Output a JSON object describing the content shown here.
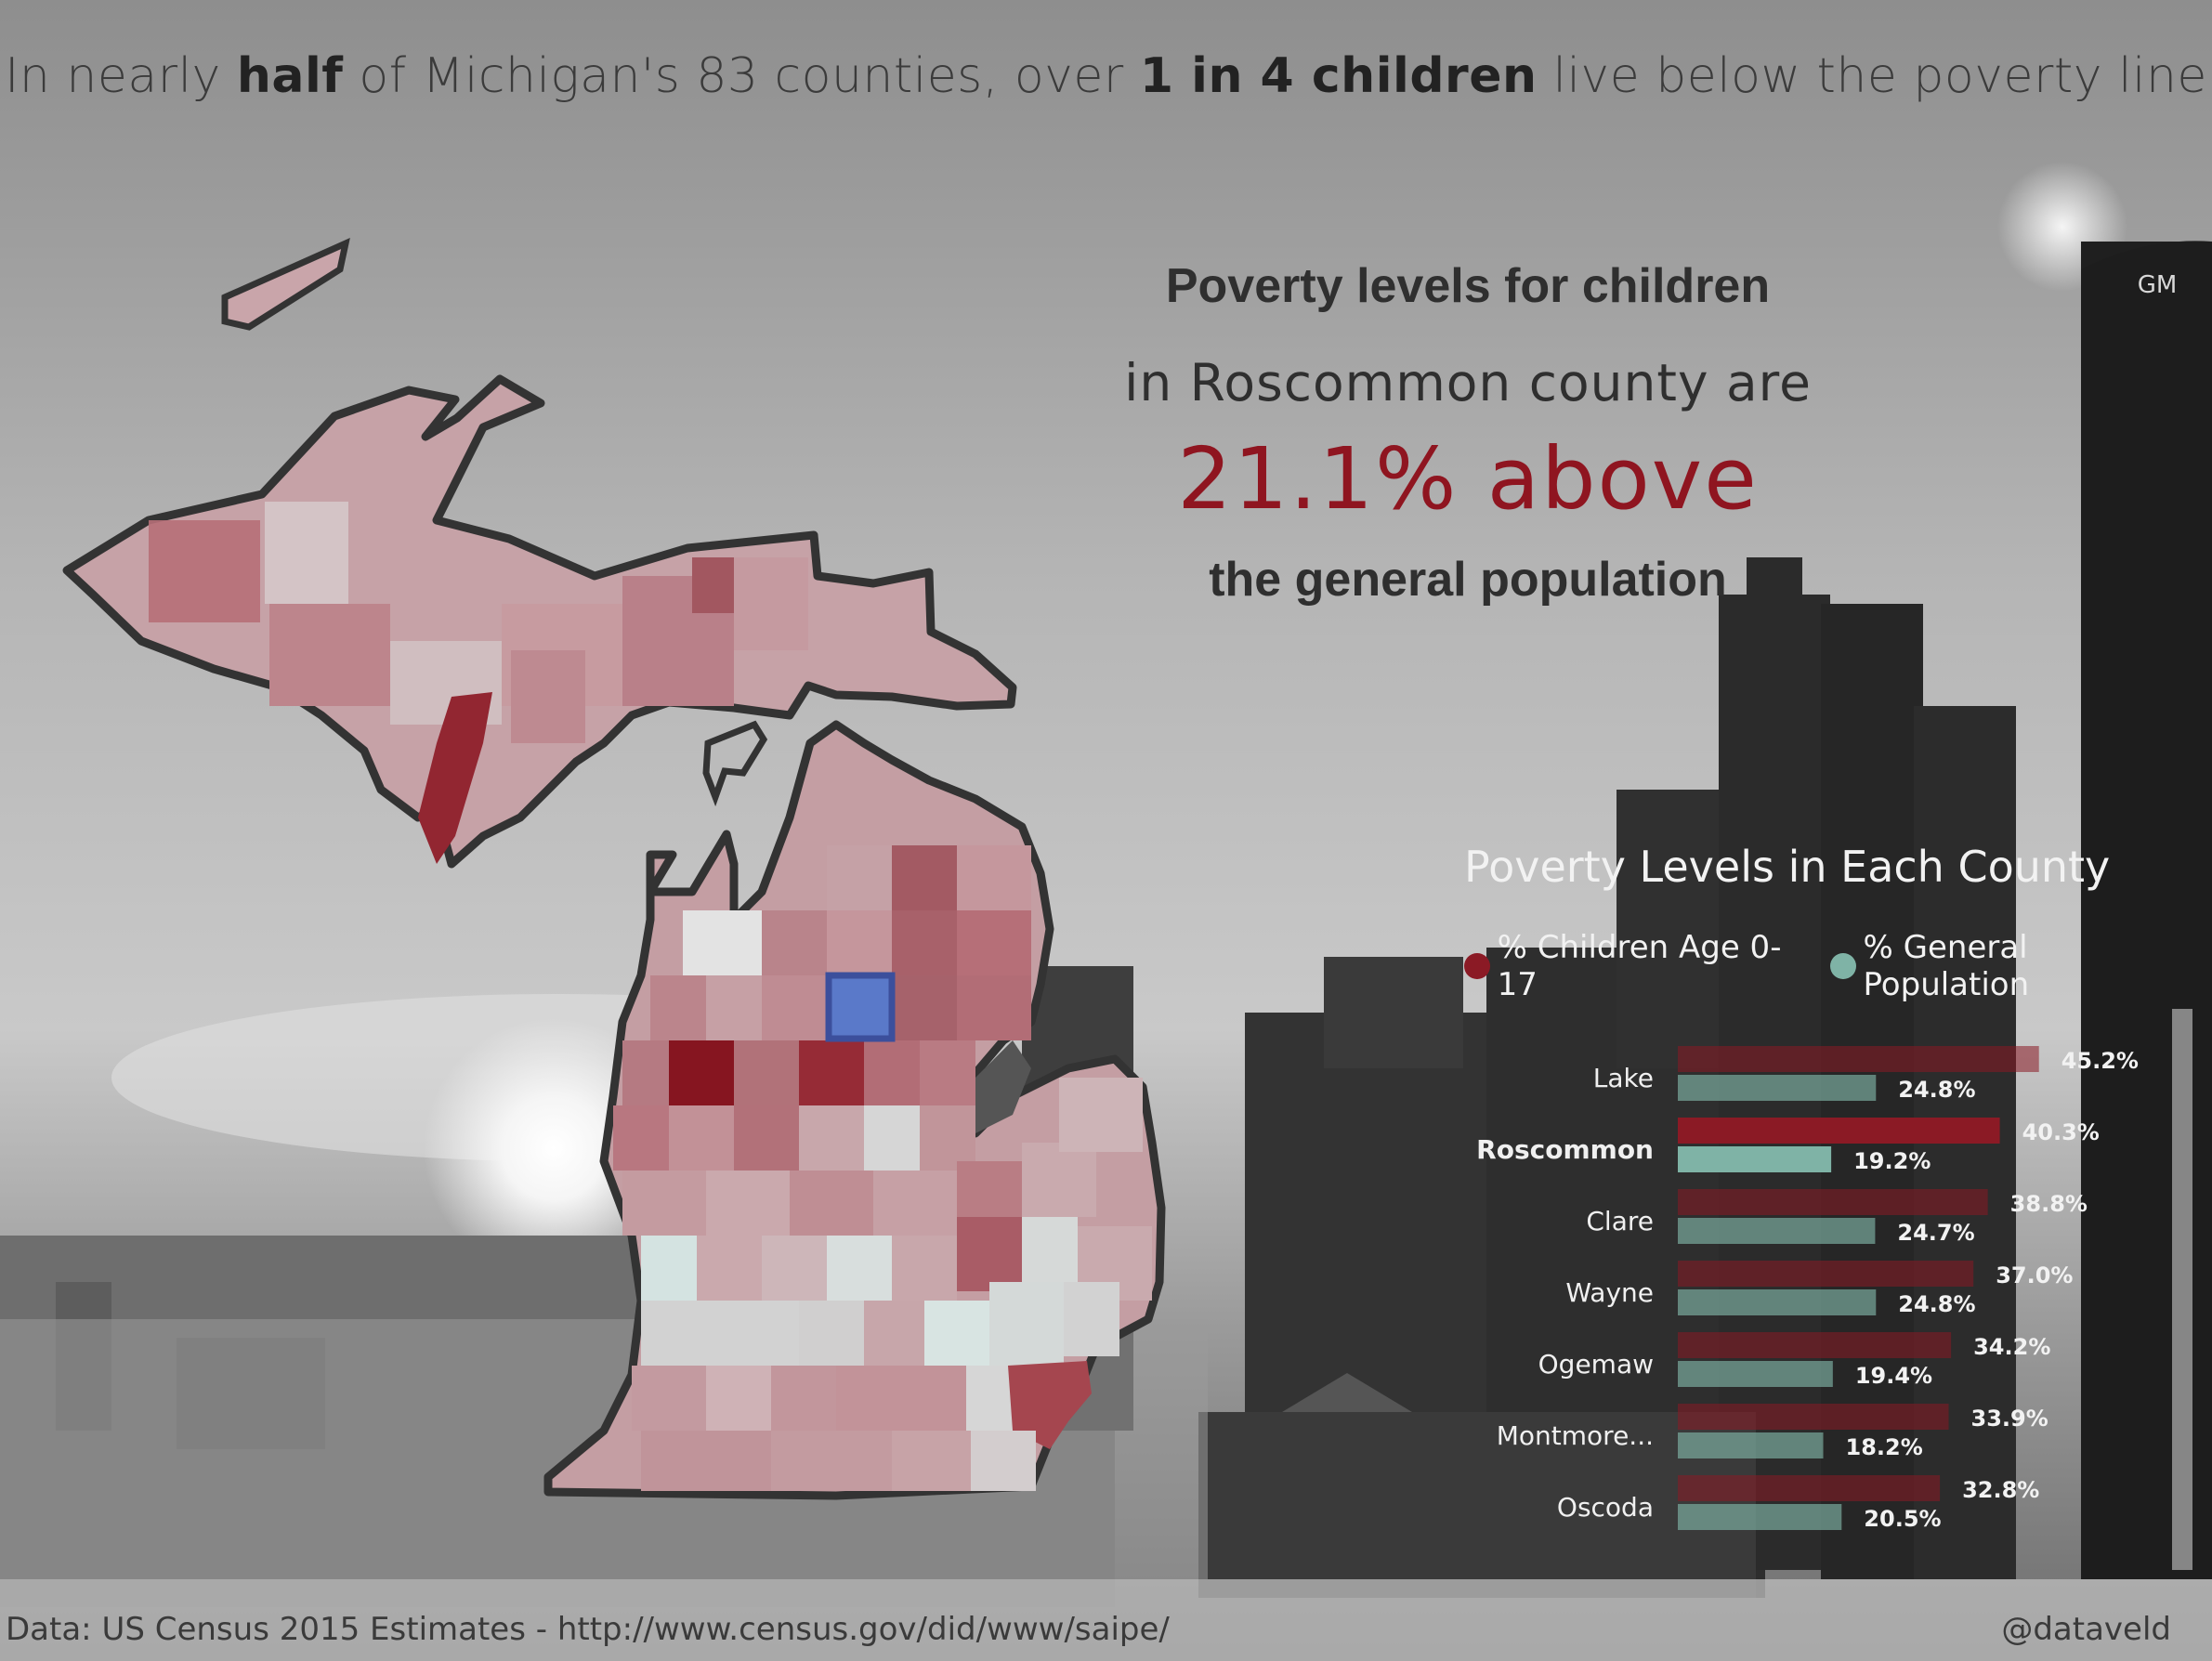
{
  "headline": {
    "part1": "In nearly ",
    "bold1": "half",
    "part2": " of Michigan's 83 counties, over ",
    "bold2": "1 in 4 children",
    "part3": " live below the poverty line"
  },
  "callout": {
    "line1": "Poverty levels for children",
    "line2": "in Roscommon county are",
    "line3": "21.1% above",
    "line4": "the general population"
  },
  "colors": {
    "children": "#8b1a25",
    "general": "#7fb3a6",
    "highlight": "#5a79c9",
    "callout_accent": "#8f1520"
  },
  "chart_data": {
    "type": "bar",
    "title": "Poverty Levels in Each County",
    "legend": [
      "% Children Age 0-17",
      "% General Population"
    ],
    "legend_position": "top",
    "categories": [
      "Lake",
      "Roscommon",
      "Clare",
      "Wayne",
      "Ogemaw",
      "Montmore...",
      "Oscoda"
    ],
    "highlighted_category": "Roscommon",
    "series": [
      {
        "name": "% Children Age 0-17",
        "values": [
          45.2,
          40.3,
          38.8,
          37.0,
          34.2,
          33.9,
          32.8
        ],
        "labels": [
          "45.2%",
          "40.3%",
          "38.8%",
          "37.0%",
          "34.2%",
          "33.9%",
          "32.8%"
        ]
      },
      {
        "name": "% General Population",
        "values": [
          24.8,
          19.2,
          24.7,
          24.8,
          19.4,
          18.2,
          20.5
        ],
        "labels": [
          "24.8%",
          "19.2%",
          "24.7%",
          "24.8%",
          "19.4%",
          "18.2%",
          "20.5%"
        ]
      }
    ],
    "orientation": "horizontal",
    "xlim": [
      0,
      50
    ]
  },
  "footer": {
    "source": "Data: US Census 2015 Estimates - http://www.census.gov/did/www/saipe/",
    "credit": "@dataveld"
  }
}
